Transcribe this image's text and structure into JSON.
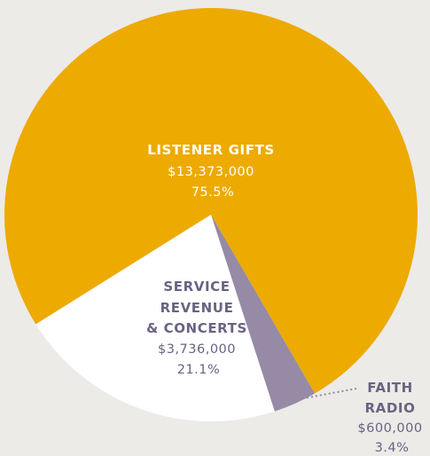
{
  "chart_data": {
    "type": "pie",
    "title": "",
    "legend": "none",
    "grid": false,
    "start_angle_deg": 148.0,
    "direction": "clockwise",
    "slices": [
      {
        "key": "listener",
        "name_lines": [
          "LISTENER GIFTS"
        ],
        "amount_label": "$13,373,000",
        "percent_label": "75.5%",
        "value": 13373000,
        "color": "#EDAA00",
        "text_color": "#FFFFFF"
      },
      {
        "key": "faith",
        "name_lines": [
          "FAITH",
          "RADIO"
        ],
        "amount_label": "$600,000",
        "percent_label": "3.4%",
        "value": 600000,
        "color": "#968AA6",
        "text_color": "#6B6282"
      },
      {
        "key": "service",
        "name_lines": [
          "SERVICE",
          "REVENUE",
          "& CONCERTS"
        ],
        "amount_label": "$3,736,000",
        "percent_label": "21.1%",
        "value": 3736000,
        "color": "#FFFFFF",
        "text_color": "#6B6282"
      }
    ]
  }
}
